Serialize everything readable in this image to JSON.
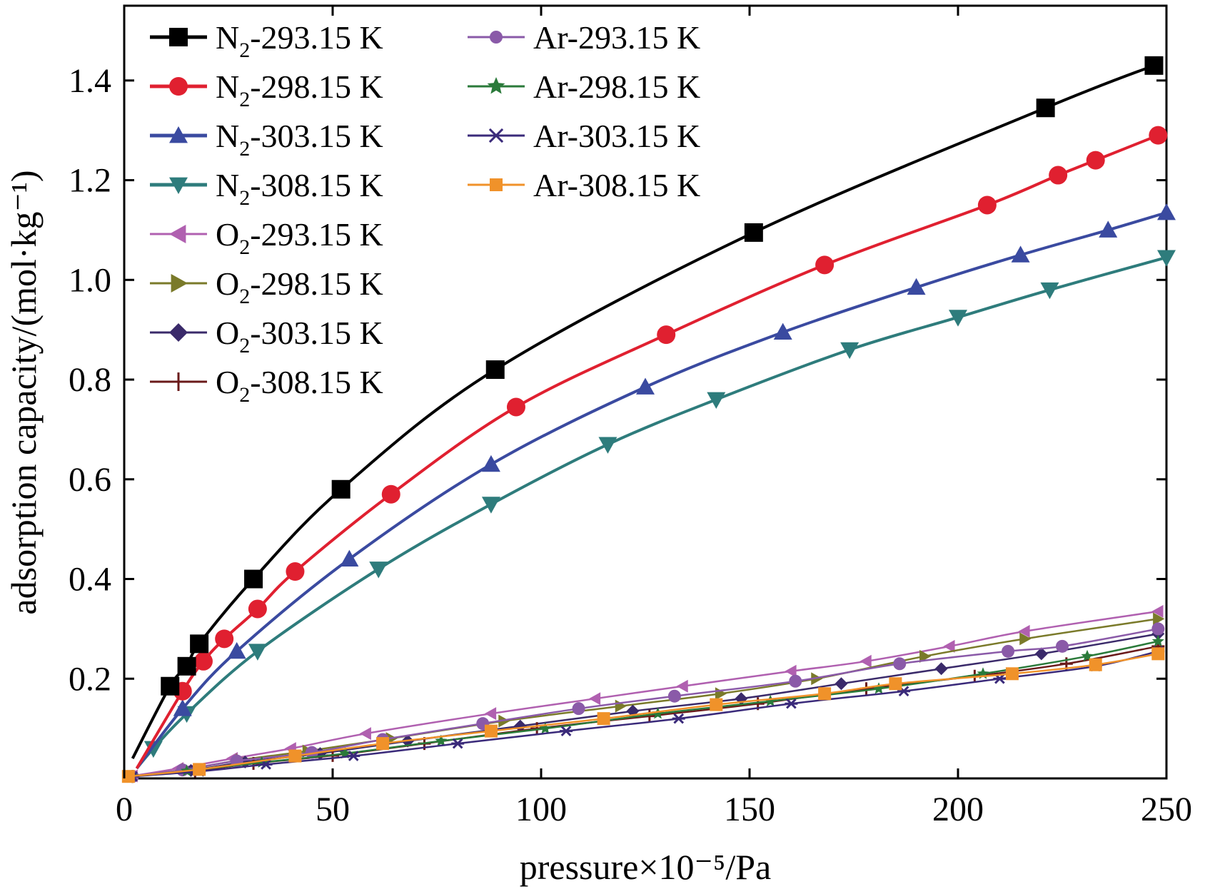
{
  "chart_data": {
    "type": "line",
    "xlabel": "pressure×10⁻⁵/Pa",
    "ylabel": "adsorption capacity/(mol·kg⁻¹)",
    "xlim": [
      0,
      250
    ],
    "ylim": [
      0.0,
      1.55
    ],
    "xticks": [
      0,
      50,
      100,
      150,
      200,
      250
    ],
    "yticks": [
      0.2,
      0.4,
      0.6,
      0.8,
      1.0,
      1.2,
      1.4
    ],
    "xtick_labels": [
      "0",
      "50",
      "100",
      "150",
      "200",
      "250"
    ],
    "ytick_labels": [
      "0.2",
      "0.4",
      "0.6",
      "0.8",
      "1.0",
      "1.2",
      "1.4"
    ],
    "grid": false,
    "legend_placement": "top-left",
    "series": [
      {
        "name": "N2-293.15 K",
        "gas": "N",
        "sub": "2",
        "temp": "-293.15 K",
        "color": "#000000",
        "marker": "square",
        "x": [
          2,
          11,
          15,
          18,
          31,
          52,
          89,
          151,
          221,
          247
        ],
        "y": [
          0.04,
          0.185,
          0.225,
          0.27,
          0.4,
          0.58,
          0.82,
          1.095,
          1.345,
          1.43
        ]
      },
      {
        "name": "N2-298.15 K",
        "gas": "N",
        "sub": "2",
        "temp": "-298.15 K",
        "color": "#e02030",
        "marker": "circle",
        "x": [
          3,
          14,
          19,
          24,
          32,
          41,
          64,
          94,
          130,
          168,
          207,
          224,
          233,
          248
        ],
        "y": [
          0.02,
          0.175,
          0.235,
          0.28,
          0.34,
          0.415,
          0.57,
          0.745,
          0.89,
          1.03,
          1.15,
          1.21,
          1.24,
          1.29
        ]
      },
      {
        "name": "N2-303.15 K",
        "gas": "N",
        "sub": "2",
        "temp": "-303.15 K",
        "color": "#3a4aa0",
        "marker": "triangle-up",
        "x": [
          3,
          14,
          27,
          54,
          88,
          125,
          158,
          190,
          215,
          236,
          250
        ],
        "y": [
          0.02,
          0.14,
          0.255,
          0.44,
          0.63,
          0.785,
          0.895,
          0.985,
          1.05,
          1.1,
          1.135
        ]
      },
      {
        "name": "N2-308.15 K",
        "gas": "N",
        "sub": "2",
        "temp": "-308.15 K",
        "color": "#2e7c7c",
        "marker": "triangle-down",
        "x": [
          3,
          7,
          15,
          32,
          61,
          88,
          116,
          142,
          174,
          200,
          222,
          250
        ],
        "y": [
          0.02,
          0.06,
          0.13,
          0.255,
          0.42,
          0.55,
          0.67,
          0.76,
          0.86,
          0.925,
          0.98,
          1.045
        ]
      },
      {
        "name": "O2-293.15 K",
        "gas": "O",
        "sub": "2",
        "temp": "-293.15 K",
        "color": "#b060b0",
        "marker": "triangle-left",
        "x": [
          2,
          13,
          26,
          40,
          58,
          88,
          113,
          134,
          160,
          178,
          198,
          216,
          248
        ],
        "y": [
          0.005,
          0.02,
          0.04,
          0.06,
          0.09,
          0.13,
          0.16,
          0.185,
          0.215,
          0.235,
          0.265,
          0.295,
          0.335
        ]
      },
      {
        "name": "O2-298.15 K",
        "gas": "O",
        "sub": "2",
        "temp": "-298.15 K",
        "color": "#7a7a2a",
        "marker": "triangle-right",
        "x": [
          2,
          15,
          28,
          44,
          64,
          91,
          119,
          143,
          166,
          192,
          216,
          248
        ],
        "y": [
          0.004,
          0.018,
          0.037,
          0.055,
          0.08,
          0.115,
          0.145,
          0.17,
          0.2,
          0.245,
          0.28,
          0.32
        ]
      },
      {
        "name": "O2-303.15 K",
        "gas": "O",
        "sub": "2",
        "temp": "-303.15 K",
        "color": "#3a2a6a",
        "marker": "diamond",
        "x": [
          2,
          16,
          29,
          47,
          68,
          95,
          122,
          148,
          172,
          196,
          220,
          248
        ],
        "y": [
          0.004,
          0.016,
          0.033,
          0.05,
          0.075,
          0.105,
          0.135,
          0.16,
          0.19,
          0.22,
          0.25,
          0.29
        ]
      },
      {
        "name": "O2-308.15 K",
        "gas": "O",
        "sub": "2",
        "temp": "-308.15 K",
        "color": "#6a1a1a",
        "marker": "plus",
        "x": [
          2,
          17,
          31,
          50,
          72,
          99,
          126,
          152,
          178,
          204,
          226,
          248
        ],
        "y": [
          0.004,
          0.015,
          0.03,
          0.046,
          0.07,
          0.1,
          0.125,
          0.15,
          0.18,
          0.205,
          0.23,
          0.265
        ]
      },
      {
        "name": "Ar-293.15 K",
        "gas": "Ar",
        "sub": "",
        "temp": "-293.15 K",
        "color": "#8a5aa8",
        "marker": "circle-small",
        "x": [
          2,
          14,
          27,
          45,
          62,
          86,
          109,
          132,
          161,
          186,
          212,
          225,
          248
        ],
        "y": [
          0.004,
          0.017,
          0.035,
          0.052,
          0.078,
          0.11,
          0.14,
          0.165,
          0.195,
          0.23,
          0.255,
          0.265,
          0.3
        ]
      },
      {
        "name": "Ar-298.15 K",
        "gas": "Ar",
        "sub": "",
        "temp": "-298.15 K",
        "color": "#2a7a3a",
        "marker": "star",
        "x": [
          2,
          15,
          33,
          53,
          76,
          101,
          128,
          155,
          181,
          206,
          231,
          248
        ],
        "y": [
          0.004,
          0.015,
          0.032,
          0.05,
          0.075,
          0.1,
          0.13,
          0.155,
          0.18,
          0.21,
          0.245,
          0.275
        ]
      },
      {
        "name": "Ar-303.15 K",
        "gas": "Ar",
        "sub": "",
        "temp": "-303.15 K",
        "color": "#3a2a7a",
        "marker": "asterisk",
        "x": [
          2,
          18,
          34,
          55,
          80,
          106,
          133,
          160,
          187,
          210,
          233,
          248
        ],
        "y": [
          0.004,
          0.014,
          0.028,
          0.045,
          0.07,
          0.095,
          0.12,
          0.15,
          0.175,
          0.2,
          0.225,
          0.255
        ]
      },
      {
        "name": "Ar-308.15 K",
        "gas": "Ar",
        "sub": "",
        "temp": "-308.15 K",
        "color": "#f0922a",
        "marker": "square-small",
        "x": [
          1,
          18,
          41,
          62,
          88,
          115,
          142,
          168,
          185,
          213,
          233,
          248
        ],
        "y": [
          0.004,
          0.018,
          0.045,
          0.07,
          0.095,
          0.12,
          0.148,
          0.17,
          0.19,
          0.21,
          0.228,
          0.25
        ]
      }
    ]
  }
}
